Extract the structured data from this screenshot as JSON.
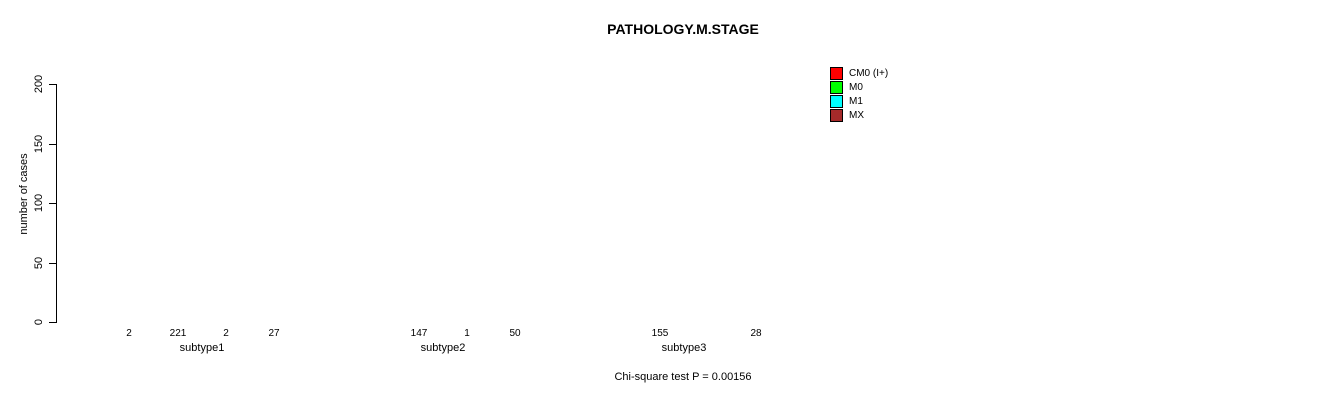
{
  "chart_data": {
    "type": "bar",
    "title": "PATHOLOGY.M.STAGE",
    "ylabel": "number of cases",
    "xlabel": "",
    "categories": [
      "subtype1",
      "subtype2",
      "subtype3"
    ],
    "series": [
      {
        "name": "CM0 (I+)",
        "color": "#ff0000",
        "values": [
          2,
          0,
          0
        ]
      },
      {
        "name": "M0",
        "color": "#00ff00",
        "values": [
          221,
          147,
          155
        ]
      },
      {
        "name": "M1",
        "color": "#00ffff",
        "values": [
          2,
          1,
          0
        ]
      },
      {
        "name": "MX",
        "color": "#a52a2a",
        "values": [
          27,
          50,
          28
        ]
      }
    ],
    "y_ticks": [
      0,
      50,
      100,
      150,
      200
    ],
    "ylim": [
      0,
      230
    ],
    "grid": false,
    "legend_position": "top-right",
    "value_labels": "numeric value printed under each bar, hidden when value is 0",
    "annotation": "Chi-square test P = 0.00156"
  }
}
